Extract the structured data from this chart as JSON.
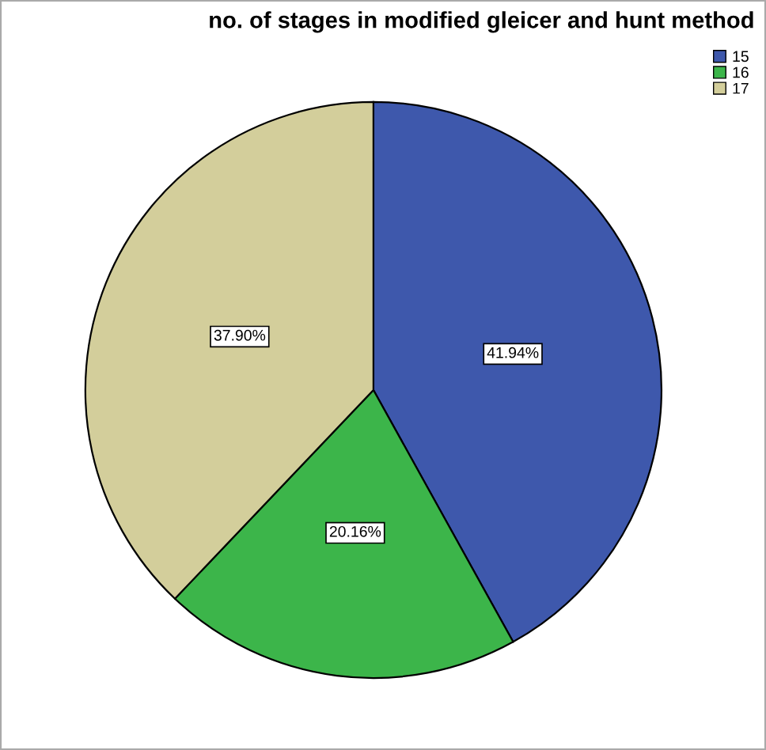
{
  "chart_data": {
    "type": "pie",
    "title": "no. of stages in modified gleicer and hunt method",
    "categories": [
      "15",
      "16",
      "17"
    ],
    "values": [
      41.94,
      20.16,
      37.9
    ],
    "value_labels": [
      "41.94%",
      "20.16%",
      "37.90%"
    ],
    "colors": [
      "#3e58ac",
      "#3cb54a",
      "#d3ce9b"
    ],
    "legend": "top right"
  }
}
